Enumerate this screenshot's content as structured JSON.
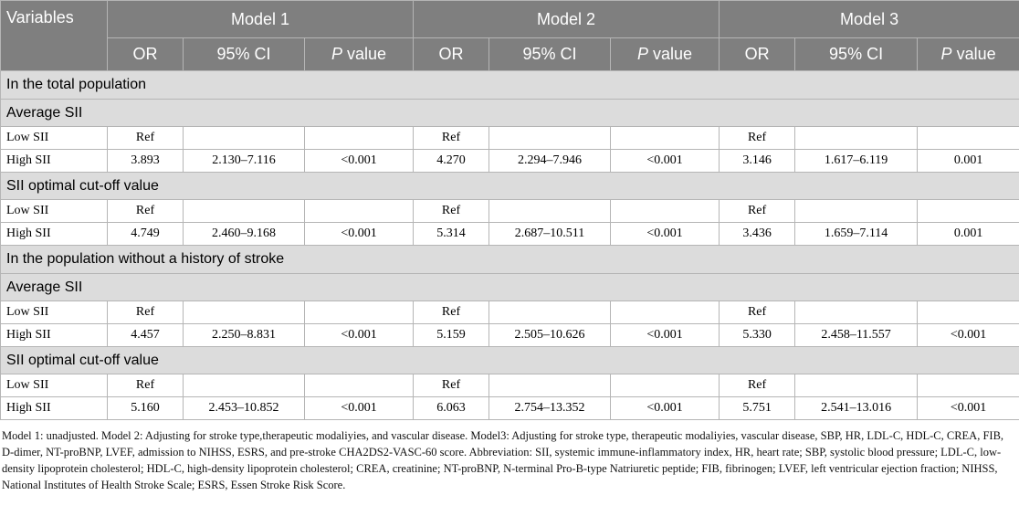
{
  "header": {
    "variables": "Variables",
    "models": [
      "Model 1",
      "Model 2",
      "Model 3"
    ],
    "subcolumns": {
      "or": "OR",
      "ci": "95% CI",
      "p_italic": "P",
      "p_rest": " value"
    }
  },
  "sections": [
    {
      "title": "In the total population",
      "groups": [
        {
          "title": "Average SII",
          "rows": [
            {
              "label": "Low SII",
              "cells": [
                "Ref",
                null,
                null,
                "Ref",
                null,
                null,
                "Ref",
                null,
                null
              ]
            },
            {
              "label": "High SII",
              "cells": [
                "3.893",
                "2.130–7.116",
                "<0.001",
                "4.270",
                "2.294–7.946",
                "<0.001",
                "3.146",
                "1.617–6.119",
                "0.001"
              ]
            }
          ]
        },
        {
          "title": "SII optimal cut-off value",
          "rows": [
            {
              "label": "Low SII",
              "cells": [
                "Ref",
                null,
                null,
                "Ref",
                null,
                null,
                "Ref",
                null,
                null
              ]
            },
            {
              "label": "High SII",
              "cells": [
                "4.749",
                "2.460–9.168",
                "<0.001",
                "5.314",
                "2.687–10.511",
                "<0.001",
                "3.436",
                "1.659–7.114",
                "0.001"
              ]
            }
          ]
        }
      ]
    },
    {
      "title": "In the population without a history of stroke",
      "groups": [
        {
          "title": "Average SII",
          "rows": [
            {
              "label": "Low SII",
              "cells": [
                "Ref",
                null,
                null,
                "Ref",
                null,
                null,
                "Ref",
                null,
                null
              ]
            },
            {
              "label": "High SII",
              "cells": [
                "4.457",
                "2.250–8.831",
                "<0.001",
                "5.159",
                "2.505–10.626",
                "<0.001",
                "5.330",
                "2.458–11.557",
                "<0.001"
              ]
            }
          ]
        },
        {
          "title": "SII optimal cut-off value",
          "rows": [
            {
              "label": "Low SII",
              "cells": [
                "Ref",
                null,
                null,
                "Ref",
                null,
                null,
                "Ref",
                null,
                null
              ]
            },
            {
              "label": "High SII",
              "cells": [
                "5.160",
                "2.453–10.852",
                "<0.001",
                "6.063",
                "2.754–13.352",
                "<0.001",
                "5.751",
                "2.541–13.016",
                "<0.001"
              ]
            }
          ]
        }
      ]
    }
  ],
  "footnote": "Model 1: unadjusted. Model 2: Adjusting for stroke type,therapeutic modaliyies, and vascular disease. Model3: Adjusting for stroke type, therapeutic modaliyies, vascular disease, SBP, HR, LDL-C, HDL-C, CREA, FIB, D-dimer, NT-proBNP, LVEF, admission to NIHSS, ESRS, and pre-stroke CHA2DS2-VASC-60 score. Abbreviation: SII, systemic immune-inflammatory index, HR, heart rate; SBP, systolic blood pressure; LDL-C, low-density lipoprotein cholesterol; HDL-C, high-density lipoprotein cholesterol; CREA, creatinine; NT-proBNP, N-terminal Pro-B-type Natriuretic peptide; FIB, fibrinogen; LVEF, left ventricular ejection fraction; NIHSS, National Institutes of Health Stroke Scale; ESRS, Essen Stroke Risk Score."
}
